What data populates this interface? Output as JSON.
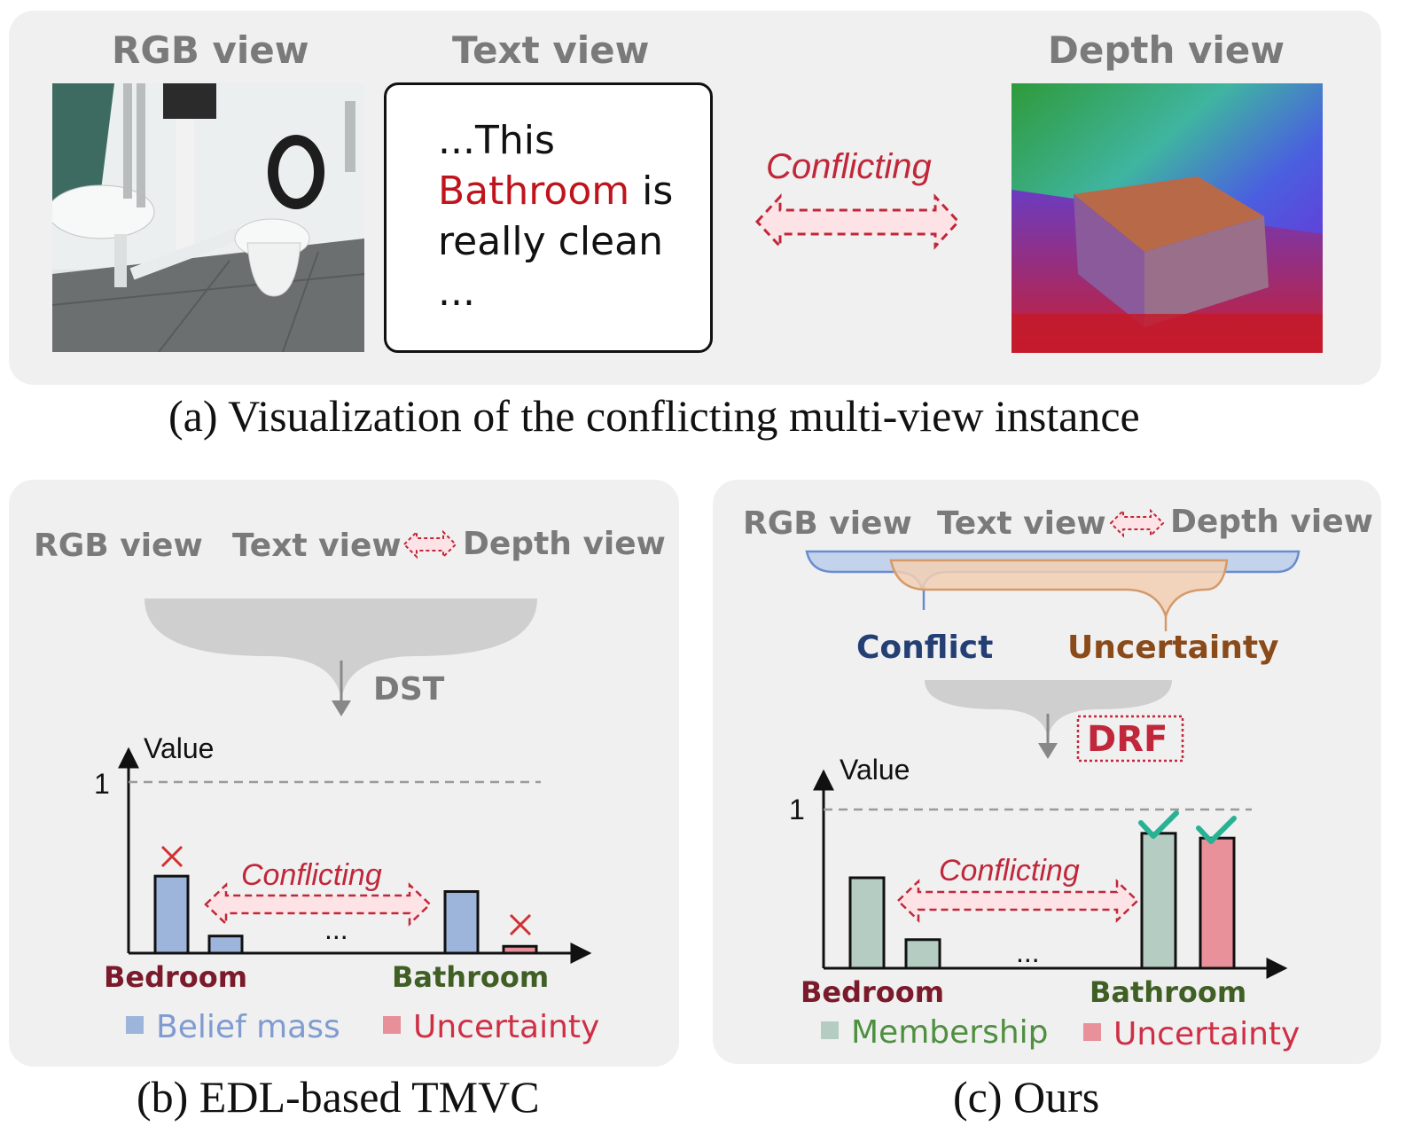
{
  "panel_a": {
    "rgb_view": "RGB view",
    "text_view": "Text view",
    "depth_view": "Depth view",
    "text_lines": [
      "...This",
      "Bathroom",
      " is",
      "really clean",
      "..."
    ],
    "conflicting": "Conflicting",
    "caption": "(a) Visualization of the conflicting multi-view instance"
  },
  "panel_b": {
    "rgb_view": "RGB view",
    "text_view": "Text view",
    "depth_view": "Depth view",
    "fusion": "DST",
    "y_axis": "Value",
    "one_tick": "1",
    "conflicting": "Conflicting",
    "ellipsis": "...",
    "class_a": "Bedroom",
    "class_b": "Bathroom",
    "legend": [
      "Belief mass",
      "Uncertainty"
    ],
    "caption": "(b) EDL-based TMVC"
  },
  "panel_c": {
    "rgb_view": "RGB view",
    "text_view": "Text view",
    "depth_view": "Depth view",
    "conflict": "Conflict",
    "uncertainty": "Uncertainty",
    "fusion": "DRF",
    "y_axis": "Value",
    "one_tick": "1",
    "conflicting": "Conflicting",
    "ellipsis": "...",
    "class_a": "Bedroom",
    "class_b": "Bathroom",
    "legend": [
      "Membership",
      "Uncertainty"
    ],
    "caption": "(c) Ours"
  },
  "chart_data": [
    {
      "type": "bar",
      "ylabel": "Value",
      "ylim": [
        0,
        1
      ],
      "categories": [
        "Bedroom",
        "",
        "...",
        "Bathroom",
        ""
      ],
      "series": [
        {
          "name": "Belief mass",
          "values": [
            0.45,
            0.1,
            null,
            0.36,
            null
          ]
        },
        {
          "name": "Uncertainty",
          "values": [
            null,
            null,
            null,
            null,
            0.04
          ]
        }
      ],
      "marks": [
        "cross on Bedroom bar",
        "cross on Uncertainty bar"
      ]
    },
    {
      "type": "bar",
      "ylabel": "Value",
      "ylim": [
        0,
        1
      ],
      "categories": [
        "Bedroom",
        "",
        "...",
        "Bathroom",
        ""
      ],
      "series": [
        {
          "name": "Membership",
          "values": [
            0.57,
            0.18,
            null,
            0.85,
            null
          ]
        },
        {
          "name": "Uncertainty",
          "values": [
            null,
            null,
            null,
            null,
            0.82
          ]
        }
      ],
      "marks": [
        "check on Bathroom bar",
        "check on Uncertainty bar"
      ]
    }
  ],
  "colors": {
    "belief": "#9db4db",
    "uncertainty_b": "#e7909a",
    "membership": "#b5ccc2",
    "uncertainty_c": "#e8919b",
    "conflict_red": "#c0273a",
    "bedroom": "#7a1a2a",
    "bathroom": "#3f5f25",
    "conflict_blue": "#233f73",
    "uncertainty_brown": "#8a4a1a",
    "check": "#27b393"
  }
}
